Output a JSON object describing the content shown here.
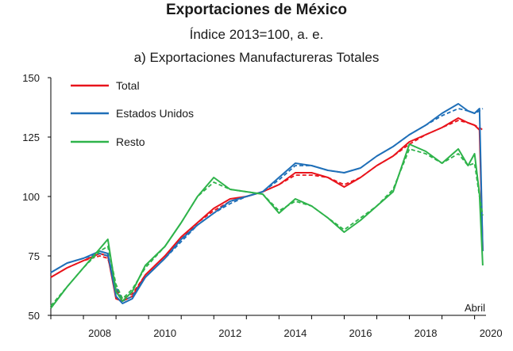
{
  "title": "Exportaciones de México",
  "subtitle": "Índice 2013=100, a. e.",
  "panel_title": "a) Exportaciones Manufactureras Totales",
  "annotation": "Abril",
  "chart_data": {
    "type": "line",
    "title": "Exportaciones de México",
    "subtitle": "Índice 2013=100, a. e.",
    "panel": "a) Exportaciones Manufactureras Totales",
    "xlim": [
      2007.0,
      2020.35
    ],
    "ylim": [
      50,
      150
    ],
    "x_ticks": [
      2008,
      2010,
      2012,
      2014,
      2016,
      2018,
      2020
    ],
    "y_ticks": [
      50,
      75,
      100,
      125,
      150
    ],
    "legend_position": "top-left",
    "grid": false,
    "annotations": [
      {
        "text": "Abril",
        "x": 2020.25,
        "y": 53
      }
    ],
    "series": [
      {
        "name": "Total",
        "color": "#e8131b",
        "x": [
          2007.0,
          2007.5,
          2008.0,
          2008.5,
          2008.75,
          2009.0,
          2009.2,
          2009.5,
          2009.9,
          2010.5,
          2011.0,
          2011.5,
          2012.0,
          2012.5,
          2013.0,
          2013.5,
          2014.0,
          2014.5,
          2015.0,
          2015.5,
          2016.0,
          2016.5,
          2017.0,
          2017.5,
          2018.0,
          2018.5,
          2019.0,
          2019.5,
          2019.8,
          2020.0,
          2020.15,
          2020.25
        ],
        "values": [
          66,
          70,
          73,
          76,
          75,
          57,
          56,
          58,
          67,
          75,
          83,
          89,
          95,
          99,
          100,
          102,
          105,
          110,
          110,
          108,
          104,
          108,
          113,
          117,
          123,
          126,
          129,
          133,
          131,
          130,
          128,
          77
        ],
        "trend": [
          66,
          70,
          73,
          75,
          74,
          61,
          57,
          59,
          67,
          75,
          82,
          89,
          94,
          98,
          100,
          102,
          105,
          109,
          109,
          108,
          105,
          108,
          113,
          117,
          122,
          126,
          129,
          132,
          131,
          130,
          129,
          128
        ]
      },
      {
        "name": "Estados Unidos",
        "color": "#1f6fb8",
        "x": [
          2007.0,
          2007.5,
          2008.0,
          2008.5,
          2008.75,
          2009.0,
          2009.2,
          2009.5,
          2009.9,
          2010.5,
          2011.0,
          2011.5,
          2012.0,
          2012.5,
          2013.0,
          2013.5,
          2014.0,
          2014.5,
          2015.0,
          2015.5,
          2016.0,
          2016.5,
          2017.0,
          2017.5,
          2018.0,
          2018.5,
          2019.0,
          2019.5,
          2019.8,
          2020.0,
          2020.15,
          2020.25
        ],
        "values": [
          68,
          72,
          74,
          77,
          76,
          58,
          55,
          57,
          66,
          74,
          82,
          88,
          93,
          98,
          100,
          102,
          108,
          114,
          113,
          111,
          110,
          112,
          117,
          121,
          126,
          130,
          135,
          139,
          136,
          135,
          137,
          77
        ],
        "trend": [
          68,
          72,
          74,
          76,
          75,
          62,
          56,
          58,
          66,
          74,
          81,
          88,
          93,
          97,
          100,
          102,
          107,
          113,
          113,
          111,
          110,
          112,
          117,
          121,
          126,
          130,
          134,
          137,
          136,
          135,
          136,
          137
        ]
      },
      {
        "name": "Resto",
        "color": "#2eb34a",
        "x": [
          2007.0,
          2007.5,
          2008.0,
          2008.5,
          2008.75,
          2009.0,
          2009.2,
          2009.5,
          2009.9,
          2010.5,
          2011.0,
          2011.5,
          2012.0,
          2012.5,
          2013.0,
          2013.5,
          2014.0,
          2014.5,
          2015.0,
          2015.5,
          2016.0,
          2016.5,
          2017.0,
          2017.5,
          2018.0,
          2018.5,
          2019.0,
          2019.5,
          2019.8,
          2020.0,
          2020.15,
          2020.25
        ],
        "values": [
          53,
          62,
          70,
          78,
          82,
          60,
          56,
          60,
          71,
          79,
          89,
          100,
          108,
          103,
          102,
          101,
          93,
          99,
          96,
          91,
          85,
          90,
          96,
          102,
          122,
          119,
          114,
          120,
          113,
          118,
          101,
          71
        ],
        "trend": [
          54,
          62,
          70,
          77,
          79,
          63,
          57,
          61,
          70,
          79,
          89,
          100,
          106,
          103,
          102,
          101,
          94,
          98,
          96,
          91,
          86,
          91,
          96,
          103,
          120,
          118,
          114,
          118,
          113,
          114,
          100,
          92
        ]
      }
    ]
  }
}
